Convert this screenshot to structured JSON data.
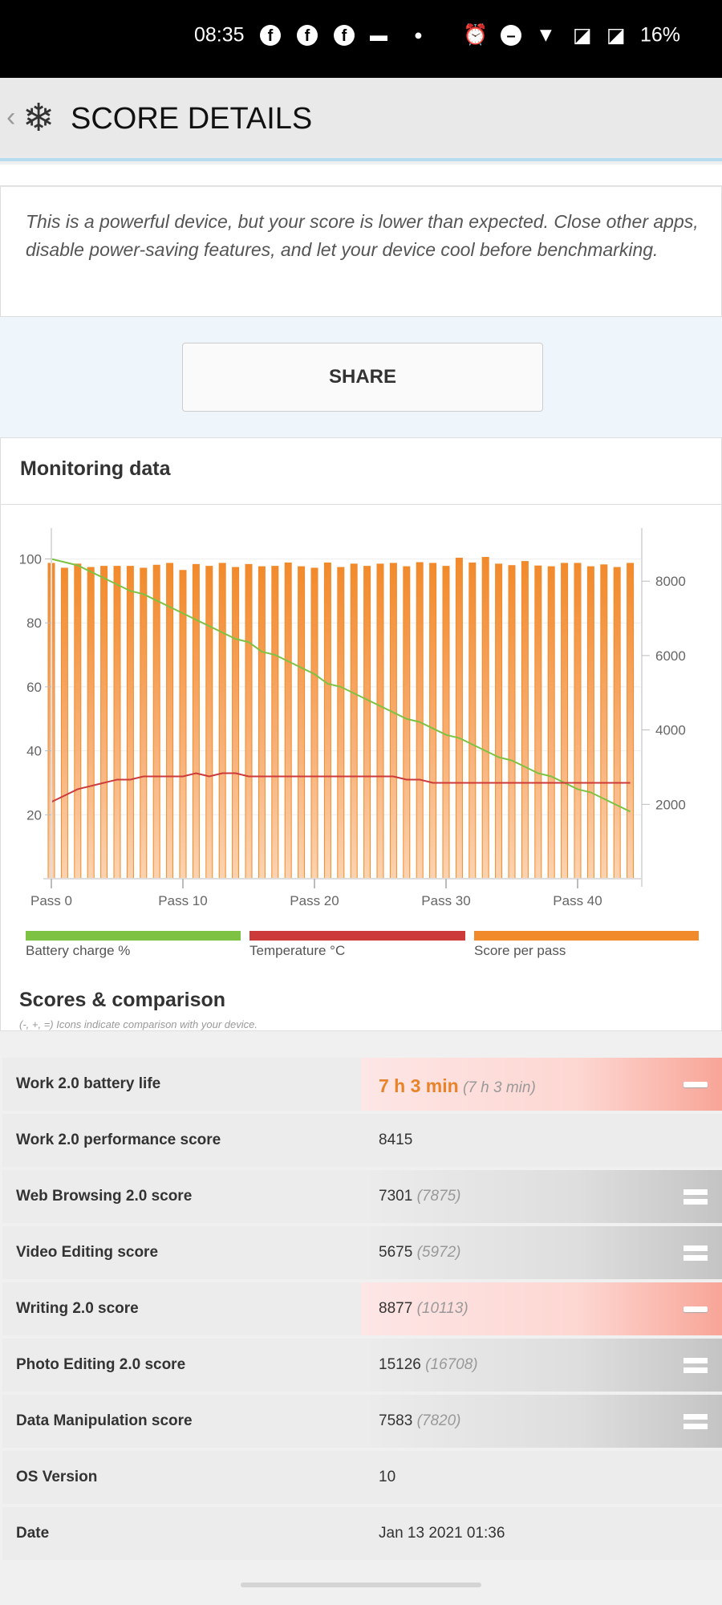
{
  "status_bar": {
    "time": "08:35",
    "battery": "16%",
    "icons": [
      "facebook-icon",
      "facebook-icon",
      "facebook-icon",
      "cast-icon",
      "dot-icon",
      "alarm-icon",
      "dnd-icon",
      "wifi-icon",
      "no-sim-icon",
      "no-sim-icon"
    ]
  },
  "header": {
    "back": "‹",
    "title": "SCORE DETAILS",
    "icon": "snowflake-icon"
  },
  "message": "This is a powerful device, but your score is lower than expected. Close other apps, disable power-saving features, and let your device cool before benchmarking.",
  "share_label": "SHARE",
  "monitoring": {
    "title": "Monitoring data"
  },
  "chart_data": {
    "type": "bar",
    "title": "Monitoring data",
    "x_ticks": [
      "Pass 0",
      "Pass 10",
      "Pass 20",
      "Pass 30",
      "Pass 40"
    ],
    "left_ticks": [
      "100",
      "80",
      "60",
      "40",
      "20"
    ],
    "right_ticks": [
      "8000",
      "6000",
      "4000",
      "2000"
    ],
    "left_ylim": [
      0,
      100
    ],
    "right_ylim": [
      0,
      9450
    ],
    "legend": [
      {
        "name": "Battery charge %",
        "color": "#7dc242"
      },
      {
        "name": "Temperature °C",
        "color": "#cc3a3a"
      },
      {
        "name": "Score per pass",
        "color": "#f08a2a"
      }
    ],
    "passes": 45,
    "score": [
      8480,
      8350,
      8460,
      8370,
      8400,
      8400,
      8400,
      8350,
      8430,
      8480,
      8290,
      8450,
      8400,
      8480,
      8370,
      8450,
      8390,
      8400,
      8490,
      8390,
      8350,
      8490,
      8370,
      8460,
      8400,
      8460,
      8480,
      8390,
      8500,
      8480,
      8400,
      8620,
      8490,
      8640,
      8460,
      8420,
      8530,
      8410,
      8390,
      8480,
      8480,
      8390,
      8440,
      8370,
      8480
    ],
    "battery": [
      100,
      99,
      98,
      96,
      94,
      92,
      90,
      89,
      87,
      85,
      83,
      81,
      79,
      77,
      75,
      74,
      71,
      70,
      68,
      66,
      64,
      61,
      60,
      58,
      56,
      54,
      52,
      50,
      49,
      47,
      45,
      44,
      42,
      40,
      38,
      37,
      35,
      33,
      32,
      30,
      28,
      27,
      25,
      23,
      21
    ],
    "temperature": [
      24,
      26,
      28,
      29,
      30,
      31,
      31,
      32,
      32,
      32,
      32,
      33,
      32,
      33,
      33,
      32,
      32,
      32,
      32,
      32,
      32,
      32,
      32,
      32,
      32,
      32,
      32,
      31,
      31,
      30,
      30,
      30,
      30,
      30,
      30,
      30,
      30,
      30,
      30,
      30,
      30,
      30,
      30,
      30,
      30
    ]
  },
  "scores": {
    "title": "Scores & comparison",
    "note": "(-, +, =) Icons indicate comparison with your device.",
    "rows": [
      {
        "label": "Work 2.0 battery life",
        "value": "7 h 3 min",
        "compare": "(7 h 3 min)",
        "indicator": "minus"
      },
      {
        "label": "Work 2.0 performance score",
        "value": "8415",
        "compare": "",
        "indicator": "none"
      },
      {
        "label": "Web Browsing 2.0 score",
        "value": "7301",
        "compare": "(7875)",
        "indicator": "equal"
      },
      {
        "label": "Video Editing score",
        "value": "5675",
        "compare": "(5972)",
        "indicator": "equal"
      },
      {
        "label": "Writing 2.0 score",
        "value": "8877",
        "compare": "(10113)",
        "indicator": "minus"
      },
      {
        "label": "Photo Editing 2.0 score",
        "value": "15126",
        "compare": "(16708)",
        "indicator": "equal"
      },
      {
        "label": "Data Manipulation score",
        "value": "7583",
        "compare": "(7820)",
        "indicator": "equal"
      },
      {
        "label": "OS Version",
        "value": "10",
        "compare": "",
        "indicator": "none"
      },
      {
        "label": "Date",
        "value": "Jan 13 2021 01:36",
        "compare": "",
        "indicator": "none"
      }
    ]
  }
}
